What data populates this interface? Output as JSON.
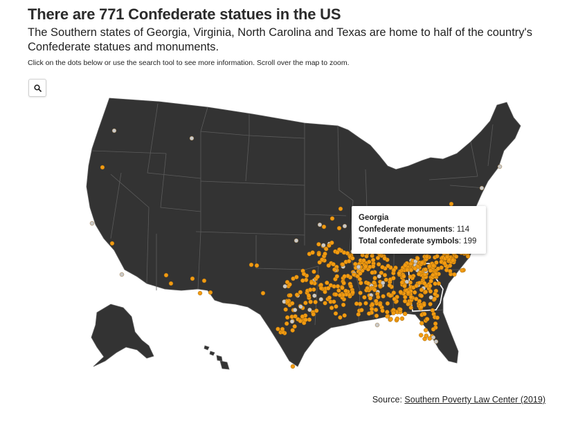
{
  "header": {
    "title": "There are 771 Confederate statues in the US",
    "subtitle": "The Southern states of Georgia, Virginia, North Carolina and Texas are home to half of the country's Confederate statues and monuments.",
    "instructions": "Click on the dots below or use the search tool to see more information. Scroll over the map to zoom."
  },
  "search": {
    "icon": "search-icon"
  },
  "tooltip": {
    "state": "Georgia",
    "monuments_label": "Confederate monuments",
    "monuments_value": "114",
    "symbols_label": "Total confederate symbols",
    "symbols_value": "199"
  },
  "source": {
    "prefix": "Source: ",
    "link_text": "Southern Poverty Law Center (2019)"
  },
  "colors": {
    "land": "#333333",
    "border": "#5c5c5c",
    "monument_dot": "#f29b11",
    "other_dot": "#c9c9c9",
    "highlight": "#ffffff"
  }
}
